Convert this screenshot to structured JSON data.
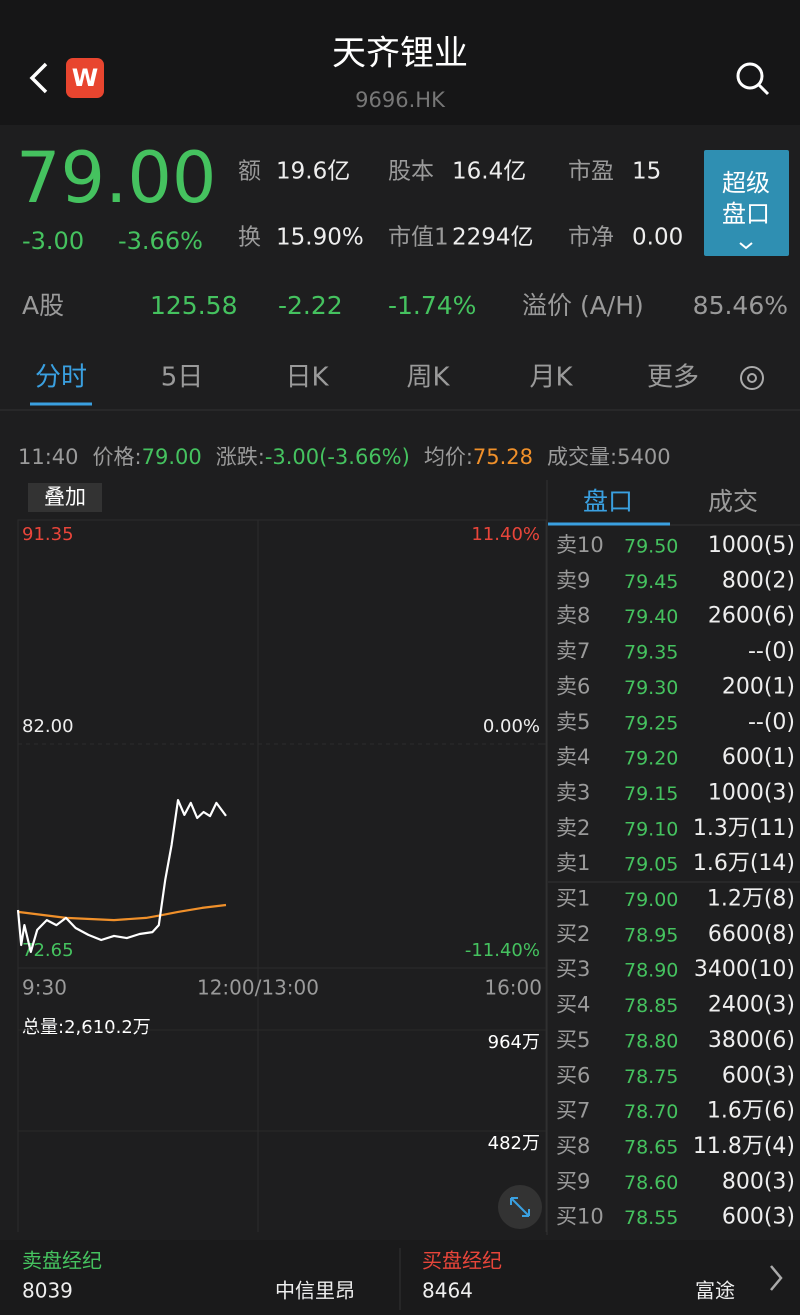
{
  "header": {
    "title": "天齐锂业",
    "code": "9696.HK"
  },
  "quote": {
    "price": "79.00",
    "change": "-3.00",
    "change_pct": "-3.66%",
    "stats": [
      {
        "label": "额",
        "value": "19.6亿"
      },
      {
        "label": "股本",
        "value": "16.4亿"
      },
      {
        "label": "市盈",
        "value": "15"
      },
      {
        "label": "换",
        "value": "15.90%"
      },
      {
        "label": "市值1",
        "value": "2294亿"
      },
      {
        "label": "市净",
        "value": "0.00"
      }
    ],
    "button": [
      "超级",
      "盘口"
    ]
  },
  "a_share": {
    "label": "A股",
    "price": "125.58",
    "change": "-2.22",
    "change_pct": "-1.74%",
    "premium_label": "溢价 (A/H)",
    "premium": "85.46%"
  },
  "tabs": [
    "分时",
    "5日",
    "日K",
    "周K",
    "月K",
    "更多"
  ],
  "info": {
    "time": "11:40",
    "price_label": "价格:",
    "price": "79.00",
    "change_label": "涨跌:",
    "change": "-3.00(-3.66%)",
    "avg_label": "均价:",
    "avg": "75.28",
    "volume_label": "成交量:",
    "volume": "5400"
  },
  "chart": {
    "type": "line",
    "overlay_button": "叠加",
    "xlim": [
      0,
      330
    ],
    "xticks": [
      {
        "value": 0,
        "label": "9:30"
      },
      {
        "value": 150,
        "label": "12:00/13:00"
      },
      {
        "value": 330,
        "label": "16:00"
      }
    ],
    "ylim": [
      72.65,
      91.35
    ],
    "yticks": [
      91.35,
      {
        "value": 82,
        "label": "82.00"
      },
      72.65
    ],
    "y2lim": [
      -11.4,
      11.4
    ],
    "y2ticks": [
      {
        "value": 11.4,
        "label": "11.40%"
      },
      {
        "value": 0,
        "label": "0.00%"
      },
      {
        "value": -11.4,
        "label": "-11.40%"
      }
    ],
    "price": {
      "color": "#ffffff",
      "x": [
        0,
        2,
        4,
        8,
        12,
        18,
        24,
        30,
        36,
        44,
        52,
        60,
        68,
        76,
        84,
        88,
        92,
        96,
        100,
        104,
        108,
        112,
        116,
        120,
        124,
        130
      ],
      "values": [
        75.07,
        73.61,
        74.44,
        73.32,
        74.24,
        74.65,
        74.44,
        74.74,
        74.32,
        74.03,
        73.82,
        73.99,
        73.9,
        74.07,
        74.15,
        74.44,
        76.32,
        77.79,
        79.66,
        79.04,
        79.54,
        78.91,
        79.16,
        78.99,
        79.54,
        79.0
      ]
    },
    "average": {
      "color": "#f0902a",
      "x": [
        0,
        30,
        60,
        80,
        90,
        100,
        115,
        130
      ],
      "values": [
        74.99,
        74.74,
        74.65,
        74.74,
        74.86,
        74.99,
        75.16,
        75.28
      ]
    }
  },
  "volume": {
    "total": "总量:2,610.2万",
    "ylim": [
      0,
      9640000
    ],
    "yticks": [
      {
        "value": 9640000,
        "label": "964万"
      },
      {
        "value": 4820000,
        "label": "482万"
      }
    ]
  },
  "order_book": {
    "tabs": [
      "盘口",
      "成交"
    ],
    "asks": [
      {
        "label": "卖10",
        "price": "79.50",
        "volume": "1000(5)"
      },
      {
        "label": "卖9",
        "price": "79.45",
        "volume": "800(2)"
      },
      {
        "label": "卖8",
        "price": "79.40",
        "volume": "2600(6)"
      },
      {
        "label": "卖7",
        "price": "79.35",
        "volume": "--(0)"
      },
      {
        "label": "卖6",
        "price": "79.30",
        "volume": "200(1)"
      },
      {
        "label": "卖5",
        "price": "79.25",
        "volume": "--(0)"
      },
      {
        "label": "卖4",
        "price": "79.20",
        "volume": "600(1)"
      },
      {
        "label": "卖3",
        "price": "79.15",
        "volume": "1000(3)"
      },
      {
        "label": "卖2",
        "price": "79.10",
        "volume": "1.3万(11)"
      },
      {
        "label": "卖1",
        "price": "79.05",
        "volume": "1.6万(14)"
      }
    ],
    "bids": [
      {
        "label": "买1",
        "price": "79.00",
        "volume": "1.2万(8)"
      },
      {
        "label": "买2",
        "price": "78.95",
        "volume": "6600(8)"
      },
      {
        "label": "买3",
        "price": "78.90",
        "volume": "3400(10)"
      },
      {
        "label": "买4",
        "price": "78.85",
        "volume": "2400(3)"
      },
      {
        "label": "买5",
        "price": "78.80",
        "volume": "3800(6)"
      },
      {
        "label": "买6",
        "price": "78.75",
        "volume": "600(3)"
      },
      {
        "label": "买7",
        "price": "78.70",
        "volume": "1.6万(6)"
      },
      {
        "label": "买8",
        "price": "78.65",
        "volume": "11.8万(4)"
      },
      {
        "label": "买9",
        "price": "78.60",
        "volume": "800(3)"
      },
      {
        "label": "买10",
        "price": "78.55",
        "volume": "600(3)"
      }
    ]
  },
  "brokers": {
    "sell": {
      "title": "卖盘经纪",
      "code": "8039",
      "name": "中信里昂"
    },
    "buy": {
      "title": "买盘经纪",
      "code": "8464",
      "name": "富途"
    }
  }
}
